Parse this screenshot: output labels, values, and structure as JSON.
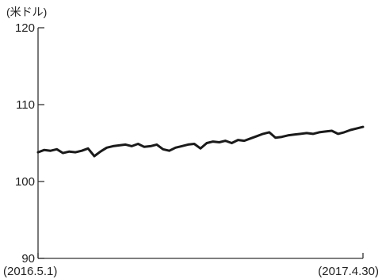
{
  "chart_data": {
    "type": "line",
    "unit_label": "(米ドル)",
    "title": "",
    "xlabel": "",
    "ylabel": "",
    "ylim": [
      90,
      120
    ],
    "yticks": [
      90,
      100,
      110,
      120
    ],
    "ytick_labels": [
      "90",
      "100",
      "110",
      "120"
    ],
    "xlim": [
      "2016-05-01",
      "2017-04-30"
    ],
    "xtick_labels": [
      "(2016.5.1)",
      "(2017.4.30)"
    ],
    "grid": false,
    "legend": "none",
    "line_color": "#1a1a1a",
    "series": [
      {
        "x": [
          "2016-05-01",
          "2016-05-08",
          "2016-05-15",
          "2016-05-22",
          "2016-05-29",
          "2016-06-05",
          "2016-06-12",
          "2016-06-19",
          "2016-06-26",
          "2016-07-03",
          "2016-07-10",
          "2016-07-17",
          "2016-07-24",
          "2016-07-31",
          "2016-08-07",
          "2016-08-14",
          "2016-08-21",
          "2016-08-28",
          "2016-09-04",
          "2016-09-11",
          "2016-09-18",
          "2016-09-25",
          "2016-10-02",
          "2016-10-09",
          "2016-10-16",
          "2016-10-23",
          "2016-10-30",
          "2016-11-06",
          "2016-11-13",
          "2016-11-20",
          "2016-11-27",
          "2016-12-04",
          "2016-12-11",
          "2016-12-18",
          "2016-12-25",
          "2017-01-01",
          "2017-01-08",
          "2017-01-15",
          "2017-01-22",
          "2017-01-29",
          "2017-02-05",
          "2017-02-12",
          "2017-02-19",
          "2017-02-26",
          "2017-03-05",
          "2017-03-12",
          "2017-03-19",
          "2017-03-26",
          "2017-04-02",
          "2017-04-09",
          "2017-04-16",
          "2017-04-23",
          "2017-04-30"
        ],
        "values": [
          103.8,
          104.1,
          104.0,
          104.2,
          103.7,
          103.9,
          103.8,
          104.0,
          104.3,
          103.3,
          103.9,
          104.4,
          104.6,
          104.7,
          104.8,
          104.6,
          104.9,
          104.5,
          104.6,
          104.8,
          104.2,
          104.0,
          104.4,
          104.6,
          104.8,
          104.9,
          104.3,
          105.0,
          105.2,
          105.1,
          105.3,
          105.0,
          105.4,
          105.3,
          105.6,
          105.9,
          106.2,
          106.4,
          105.7,
          105.8,
          106.0,
          106.1,
          106.2,
          106.3,
          106.2,
          106.4,
          106.5,
          106.6,
          106.2,
          106.4,
          106.7,
          106.9,
          107.1
        ]
      }
    ]
  }
}
